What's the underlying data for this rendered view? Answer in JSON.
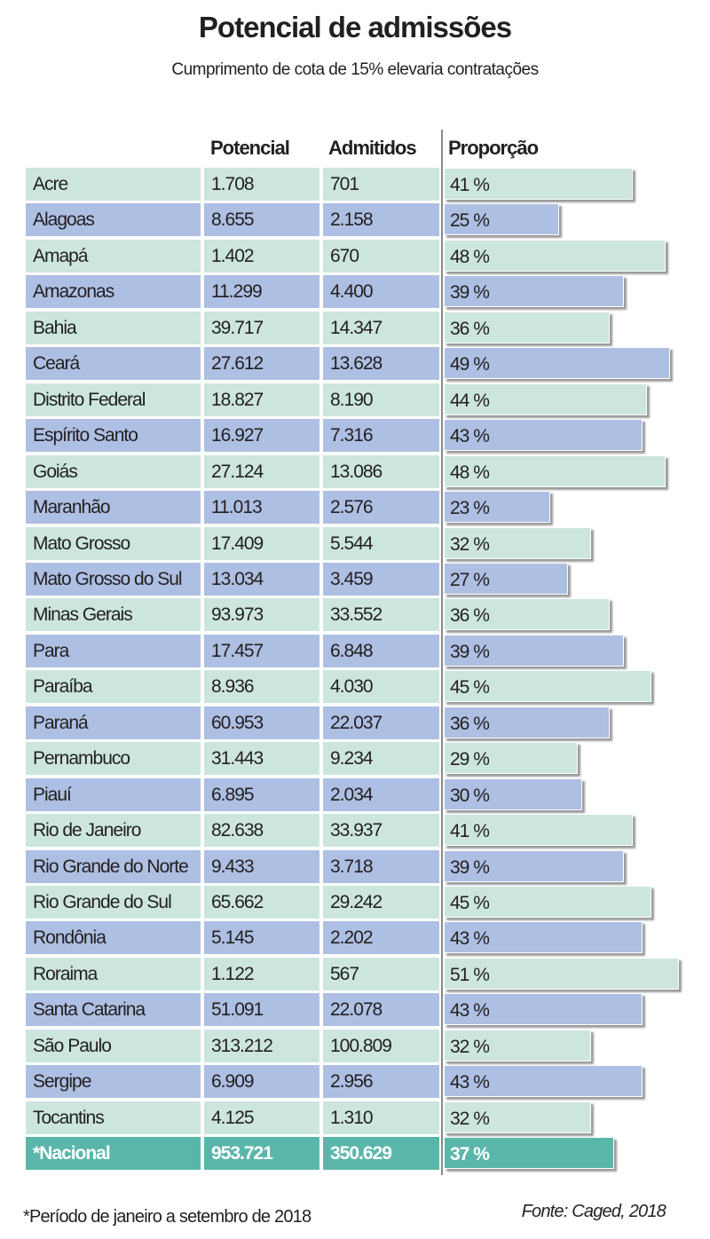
{
  "chart_data": {
    "type": "table",
    "title": "Potencial de admissões",
    "subtitle": "Cumprimento de cota de 15% elevaria contratações",
    "columns": [
      "Potencial",
      "Admitidos",
      "Proporção"
    ],
    "rows": [
      {
        "name": "Acre",
        "potencial": "1.708",
        "admitidos": "701",
        "proporcao": 41
      },
      {
        "name": "Alagoas",
        "potencial": "8.655",
        "admitidos": "2.158",
        "proporcao": 25
      },
      {
        "name": "Amapá",
        "potencial": "1.402",
        "admitidos": "670",
        "proporcao": 48
      },
      {
        "name": "Amazonas",
        "potencial": "11.299",
        "admitidos": "4.400",
        "proporcao": 39
      },
      {
        "name": "Bahia",
        "potencial": "39.717",
        "admitidos": "14.347",
        "proporcao": 36
      },
      {
        "name": "Ceará",
        "potencial": "27.612",
        "admitidos": "13.628",
        "proporcao": 49
      },
      {
        "name": "Distrito Federal",
        "potencial": "18.827",
        "admitidos": "8.190",
        "proporcao": 44
      },
      {
        "name": "Espírito Santo",
        "potencial": "16.927",
        "admitidos": "7.316",
        "proporcao": 43
      },
      {
        "name": "Goiás",
        "potencial": "27.124",
        "admitidos": "13.086",
        "proporcao": 48
      },
      {
        "name": "Maranhão",
        "potencial": "11.013",
        "admitidos": "2.576",
        "proporcao": 23
      },
      {
        "name": "Mato Grosso",
        "potencial": "17.409",
        "admitidos": "5.544",
        "proporcao": 32
      },
      {
        "name": "Mato Grosso do Sul",
        "potencial": "13.034",
        "admitidos": "3.459",
        "proporcao": 27
      },
      {
        "name": "Minas Gerais",
        "potencial": "93.973",
        "admitidos": "33.552",
        "proporcao": 36
      },
      {
        "name": "Para",
        "potencial": "17.457",
        "admitidos": "6.848",
        "proporcao": 39
      },
      {
        "name": "Paraíba",
        "potencial": "8.936",
        "admitidos": "4.030",
        "proporcao": 45
      },
      {
        "name": "Paraná",
        "potencial": "60.953",
        "admitidos": "22.037",
        "proporcao": 36
      },
      {
        "name": "Pernambuco",
        "potencial": "31.443",
        "admitidos": "9.234",
        "proporcao": 29
      },
      {
        "name": "Piauí",
        "potencial": "6.895",
        "admitidos": "2.034",
        "proporcao": 30
      },
      {
        "name": "Rio de Janeiro",
        "potencial": "82.638",
        "admitidos": "33.937",
        "proporcao": 41
      },
      {
        "name": "Rio Grande do Norte",
        "potencial": "9.433",
        "admitidos": "3.718",
        "proporcao": 39
      },
      {
        "name": "Rio Grande do Sul",
        "potencial": "65.662",
        "admitidos": "29.242",
        "proporcao": 45
      },
      {
        "name": "Rondônia",
        "potencial": "5.145",
        "admitidos": "2.202",
        "proporcao": 43
      },
      {
        "name": "Roraima",
        "potencial": "1.122",
        "admitidos": "567",
        "proporcao": 51
      },
      {
        "name": "Santa Catarina",
        "potencial": "51.091",
        "admitidos": "22.078",
        "proporcao": 43
      },
      {
        "name": "São Paulo",
        "potencial": "313.212",
        "admitidos": "100.809",
        "proporcao": 32
      },
      {
        "name": "Sergipe",
        "potencial": "6.909",
        "admitidos": "2.956",
        "proporcao": 43
      },
      {
        "name": "Tocantins",
        "potencial": "4.125",
        "admitidos": "1.310",
        "proporcao": 32
      }
    ],
    "total": {
      "name": "*Nacional",
      "potencial": "953.721",
      "admitidos": "350.629",
      "proporcao": 37
    },
    "unit_suffix": " %"
  },
  "footnote": "*Período de janeiro a setembro de 2018",
  "source": "Fonte: Caged, 2018",
  "colors": {
    "light": "#cce6df",
    "blue": "#adbfe2",
    "total": "#5bb6aa"
  }
}
